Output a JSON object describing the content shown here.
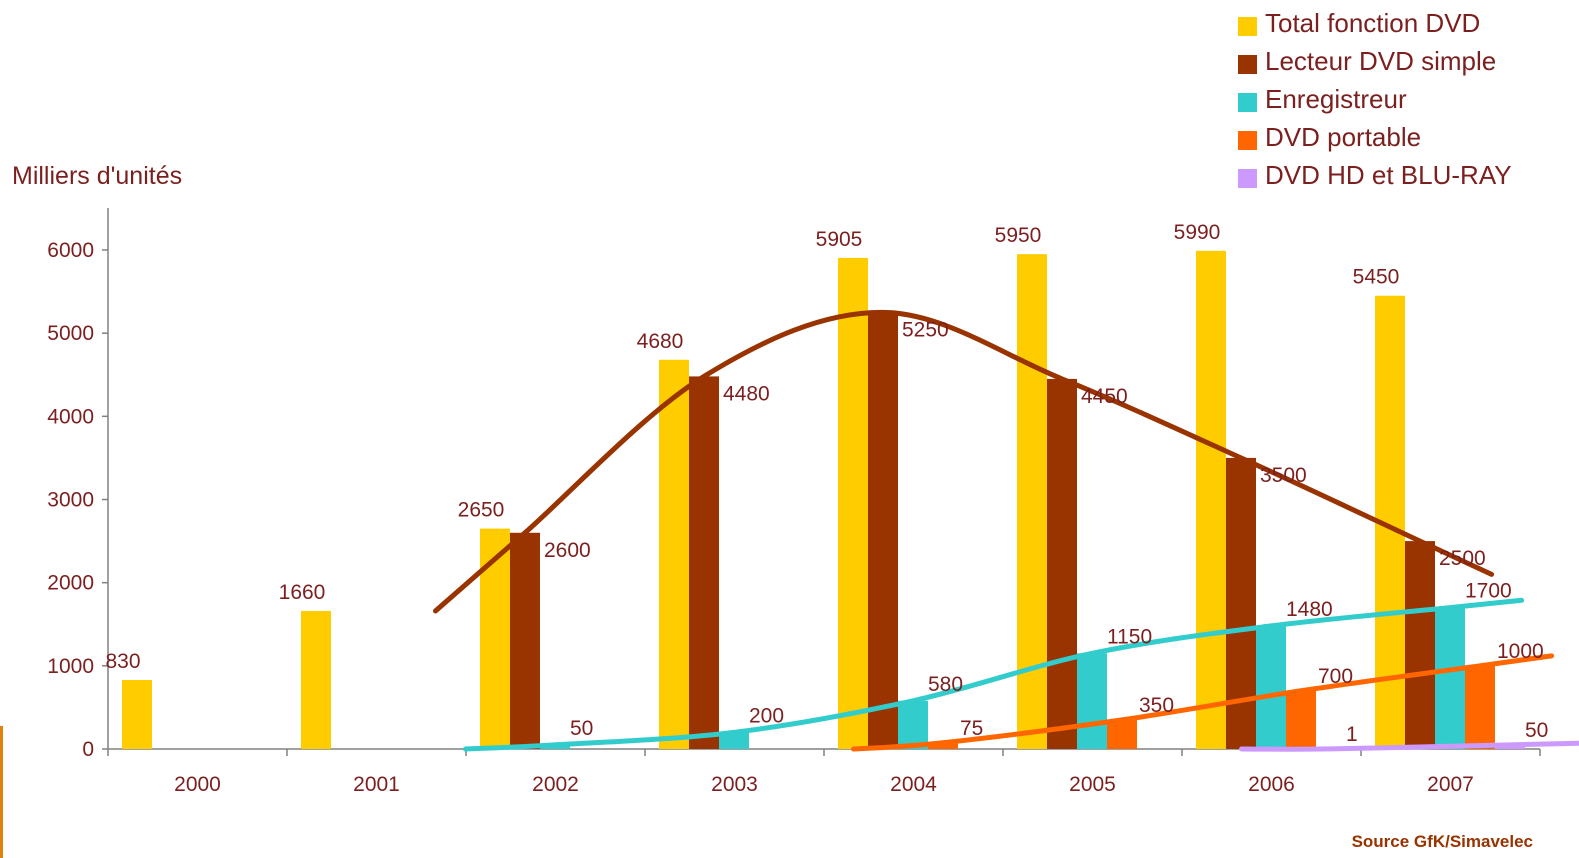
{
  "chart_data": {
    "type": "bar",
    "title": "",
    "ylabel": "Milliers d'unités",
    "xlabel": "",
    "source": "Source GfK/Simavelec",
    "ylim": [
      0,
      6500
    ],
    "yticks": [
      "0",
      "1000",
      "2000",
      "3000",
      "4000",
      "5000",
      "6000"
    ],
    "categories": [
      "2000",
      "2001",
      "2002",
      "2003",
      "2004",
      "2005",
      "2006",
      "2007"
    ],
    "legend_position": "top-right",
    "series": [
      {
        "name": "Total fonction DVD",
        "color": "#ffcc00",
        "values": [
          830,
          1660,
          2650,
          4680,
          5905,
          5950,
          5990,
          5450
        ],
        "labels": [
          "830",
          "1660",
          "2650",
          "4680",
          "5905",
          "5950",
          "5990",
          "5450"
        ]
      },
      {
        "name": "Lecteur DVD simple",
        "color": "#993300",
        "values": [
          null,
          null,
          2600,
          4480,
          5250,
          4450,
          3500,
          2500
        ],
        "labels": [
          "",
          "",
          "2600",
          "4480",
          "5250",
          "4450",
          "3500",
          "2500"
        ]
      },
      {
        "name": "Enregistreur",
        "color": "#33cccc",
        "values": [
          null,
          null,
          50,
          200,
          580,
          1150,
          1480,
          1700
        ],
        "labels": [
          "",
          "",
          "50",
          "200",
          "580",
          "1150",
          "1480",
          "1700"
        ]
      },
      {
        "name": "DVD portable",
        "color": "#ff6600",
        "values": [
          null,
          null,
          null,
          null,
          75,
          350,
          700,
          1000
        ],
        "labels": [
          "",
          "",
          "",
          "",
          "75",
          "350",
          "700",
          "1000"
        ]
      },
      {
        "name": "DVD HD et BLU-RAY",
        "color": "#cc99ff",
        "values": [
          null,
          null,
          null,
          null,
          null,
          null,
          1,
          50
        ],
        "labels": [
          "",
          "",
          "",
          "",
          "",
          "",
          "1",
          "50"
        ]
      }
    ],
    "trend_lines": [
      "Lecteur DVD simple",
      "Enregistreur",
      "DVD portable",
      "DVD HD et BLU-RAY"
    ]
  }
}
